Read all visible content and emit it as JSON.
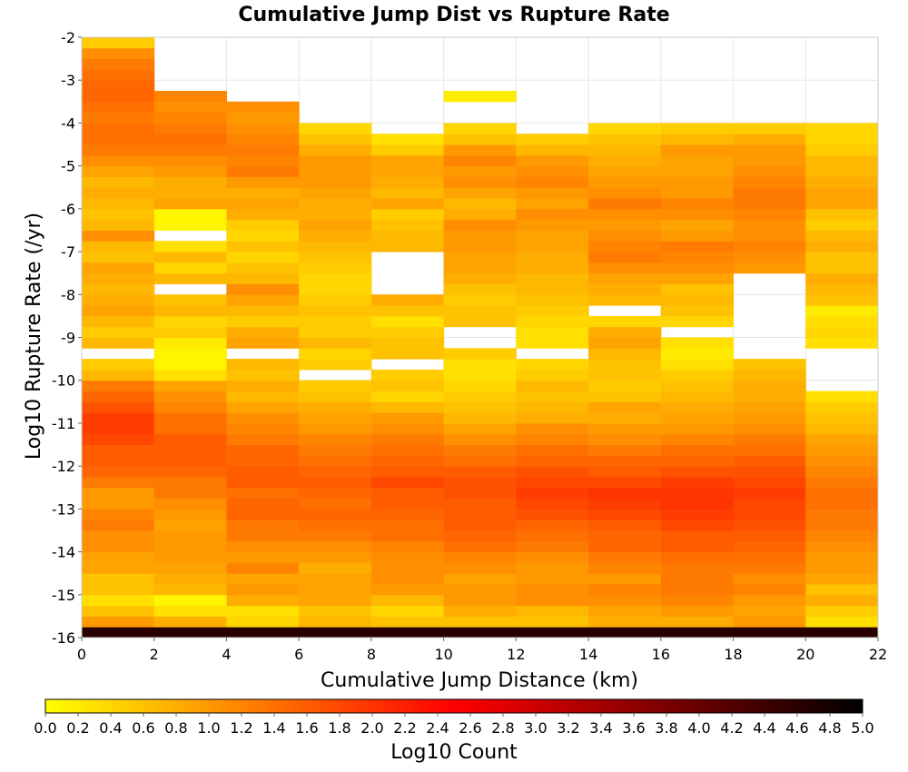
{
  "chart_data": {
    "type": "heatmap",
    "title": "Cumulative Jump Dist vs Rupture Rate",
    "xlabel": "Cumulative Jump Distance (km)",
    "ylabel": "Log10 Rupture Rate (/yr)",
    "colorbar_label": "Log10 Count",
    "xlim": [
      0,
      22
    ],
    "ylim": [
      -16,
      -2
    ],
    "x_ticks": [
      0,
      2,
      4,
      6,
      8,
      10,
      12,
      14,
      16,
      18,
      20,
      22
    ],
    "y_ticks": [
      -2,
      -3,
      -4,
      -5,
      -6,
      -7,
      -8,
      -9,
      -10,
      -11,
      -12,
      -13,
      -14,
      -15,
      -16
    ],
    "color_range": [
      0.0,
      5.0
    ],
    "colorbar_ticks": [
      "0.0",
      "0.2",
      "0.4",
      "0.6",
      "0.8",
      "1.0",
      "1.2",
      "1.4",
      "1.6",
      "1.8",
      "2.0",
      "2.2",
      "2.4",
      "2.6",
      "2.8",
      "3.0",
      "3.2",
      "3.4",
      "3.6",
      "3.8",
      "4.0",
      "4.2",
      "4.4",
      "4.6",
      "4.8",
      "5.0"
    ],
    "colorscale": [
      "#ffff00",
      "#ff0000",
      "#000000"
    ],
    "grid": true,
    "x_bin_edges": [
      0,
      2,
      4,
      6,
      8,
      10,
      12,
      14,
      16,
      18,
      20,
      22
    ],
    "y_bin_size": 0.25,
    "y_bin_start": -16,
    "z_values_by_x_bin": [
      [
        4.6,
        1.0,
        0.6,
        0.3,
        0.6,
        0.6,
        0.9,
        0.9,
        1.1,
        1.1,
        1.3,
        1.2,
        1.0,
        1.0,
        1.3,
        1.5,
        1.6,
        1.6,
        1.8,
        1.9,
        1.9,
        1.7,
        1.5,
        1.3,
        0.7,
        0.5,
        null,
        0.7,
        0.5,
        0.7,
        0.9,
        0.8,
        0.7,
        0.8,
        0.9,
        0.6,
        0.7,
        1.1,
        0.7,
        0.6,
        0.7,
        0.8,
        0.7,
        0.9,
        1.1,
        1.3,
        1.4,
        1.4,
        1.3,
        1.4,
        1.5,
        1.5,
        1.4,
        1.3,
        1.1,
        0.5,
        null,
        null,
        null,
        null,
        null,
        null,
        null,
        null
      ],
      [
        4.6,
        0.8,
        0.3,
        0.1,
        0.7,
        0.8,
        0.9,
        1.0,
        1.0,
        1.0,
        0.9,
        1.0,
        1.1,
        1.3,
        1.3,
        1.5,
        1.6,
        1.6,
        1.6,
        1.4,
        1.4,
        1.2,
        1.1,
        0.9,
        0.3,
        0.1,
        0.1,
        0.2,
        0.5,
        0.4,
        0.7,
        0.6,
        null,
        0.7,
        0.4,
        0.7,
        0.3,
        null,
        0.1,
        0.1,
        0.9,
        0.8,
        0.8,
        1.0,
        1.1,
        1.3,
        1.4,
        1.3,
        1.2,
        1.1,
        1.2,
        null,
        null,
        null,
        null,
        null,
        null,
        null,
        null,
        null,
        null,
        null,
        null,
        null
      ],
      [
        4.6,
        0.4,
        0.3,
        0.8,
        1.0,
        0.9,
        1.2,
        1.0,
        1.1,
        1.3,
        1.3,
        1.5,
        1.5,
        1.4,
        1.6,
        1.6,
        1.5,
        1.5,
        1.3,
        1.2,
        1.1,
        0.9,
        0.7,
        0.8,
        0.6,
        0.7,
        null,
        0.9,
        0.8,
        0.5,
        0.7,
        0.9,
        1.1,
        0.7,
        0.6,
        0.4,
        0.6,
        0.4,
        0.5,
        0.8,
        0.9,
        0.8,
        1.0,
        1.3,
        1.2,
        1.3,
        1.2,
        1.1,
        1.0,
        1.1,
        null,
        null,
        null,
        null,
        null,
        null,
        null,
        null,
        null,
        null,
        null,
        null,
        null,
        null
      ],
      [
        4.6,
        0.7,
        0.6,
        0.9,
        0.9,
        0.9,
        0.8,
        1.0,
        1.1,
        1.3,
        1.4,
        1.5,
        1.4,
        1.5,
        1.6,
        1.5,
        1.4,
        1.3,
        1.2,
        1.0,
        0.9,
        0.8,
        0.6,
        0.5,
        null,
        0.5,
        0.4,
        0.7,
        0.5,
        0.5,
        0.6,
        0.5,
        0.4,
        0.4,
        0.5,
        0.6,
        0.7,
        0.8,
        0.9,
        0.8,
        0.8,
        0.9,
        1.0,
        1.0,
        1.0,
        0.8,
        0.6,
        0.4,
        null,
        null,
        null,
        null,
        null,
        null,
        null,
        null,
        null,
        null,
        null,
        null,
        null,
        null,
        null,
        null
      ],
      [
        4.6,
        0.6,
        0.4,
        0.7,
        1.0,
        1.1,
        1.1,
        1.1,
        1.2,
        1.4,
        1.4,
        1.5,
        1.6,
        1.6,
        1.8,
        1.6,
        1.5,
        1.4,
        1.3,
        1.1,
        1.0,
        0.7,
        0.4,
        0.6,
        0.5,
        null,
        0.6,
        0.6,
        0.5,
        0.3,
        0.6,
        0.8,
        null,
        null,
        null,
        null,
        0.7,
        0.7,
        0.6,
        0.5,
        0.9,
        0.7,
        0.8,
        0.9,
        0.9,
        0.5,
        0.3,
        null,
        null,
        null,
        null,
        null,
        null,
        null,
        null,
        null,
        null,
        null,
        null,
        null,
        null,
        null,
        null,
        null
      ],
      [
        4.6,
        0.6,
        0.8,
        1.0,
        1.0,
        0.9,
        1.1,
        1.2,
        1.4,
        1.5,
        1.6,
        1.6,
        1.6,
        1.7,
        1.7,
        1.6,
        1.4,
        1.3,
        1.1,
        0.9,
        0.7,
        0.6,
        0.5,
        0.4,
        0.3,
        0.3,
        0.5,
        null,
        null,
        0.6,
        0.6,
        0.5,
        0.6,
        0.8,
        0.9,
        0.9,
        1.0,
        1.0,
        1.1,
        0.8,
        0.7,
        0.9,
        1.1,
        1.0,
        1.2,
        1.0,
        0.6,
        0.4,
        null,
        null,
        0.2,
        null,
        null,
        null,
        null,
        null,
        null,
        null,
        null,
        null,
        null,
        null,
        null,
        null
      ],
      [
        4.6,
        0.6,
        0.7,
        1.1,
        1.1,
        1.0,
        1.0,
        1.1,
        1.3,
        1.4,
        1.5,
        1.7,
        1.8,
        1.9,
        1.8,
        1.7,
        1.5,
        1.4,
        1.2,
        1.1,
        0.8,
        0.7,
        0.6,
        0.7,
        0.5,
        0.4,
        null,
        0.3,
        0.3,
        0.4,
        0.5,
        0.6,
        0.7,
        0.7,
        0.8,
        0.8,
        0.9,
        0.9,
        1.0,
        1.1,
        0.9,
        1.0,
        1.2,
        1.1,
        1.0,
        0.7,
        0.5,
        null,
        null,
        null,
        null,
        null,
        null,
        null,
        null,
        null,
        null,
        null,
        null,
        null,
        null,
        null,
        null,
        null
      ],
      [
        4.6,
        0.8,
        0.9,
        1.1,
        1.2,
        1.0,
        1.2,
        1.3,
        1.5,
        1.5,
        1.6,
        1.8,
        1.9,
        2.0,
        1.8,
        1.6,
        1.5,
        1.3,
        1.1,
        1.0,
        0.8,
        0.9,
        0.6,
        0.5,
        0.6,
        0.6,
        0.7,
        0.9,
        0.8,
        0.4,
        null,
        0.7,
        0.8,
        0.9,
        1.1,
        1.3,
        1.2,
        1.1,
        1.0,
        1.1,
        1.3,
        1.1,
        1.0,
        0.9,
        0.8,
        0.7,
        0.6,
        0.4,
        null,
        null,
        null,
        null,
        null,
        null,
        null,
        null,
        null,
        null,
        null,
        null,
        null,
        null,
        null,
        null
      ],
      [
        4.6,
        0.8,
        1.0,
        1.2,
        1.3,
        1.3,
        1.3,
        1.4,
        1.6,
        1.6,
        1.8,
        1.9,
        2.0,
        2.0,
        1.9,
        1.7,
        1.5,
        1.4,
        1.2,
        1.0,
        0.9,
        0.8,
        0.7,
        0.6,
        0.5,
        0.3,
        0.2,
        0.3,
        null,
        0.4,
        0.6,
        0.7,
        0.6,
        0.9,
        1.1,
        1.2,
        1.3,
        1.0,
        0.9,
        1.1,
        1.2,
        1.0,
        1.0,
        0.9,
        0.9,
        1.0,
        0.7,
        0.5,
        null,
        null,
        null,
        null,
        null,
        null,
        null,
        null,
        null,
        null,
        null,
        null,
        null,
        null,
        null,
        null
      ],
      [
        4.6,
        1.0,
        0.9,
        1.0,
        1.2,
        1.1,
        1.3,
        1.4,
        1.5,
        1.6,
        1.7,
        1.8,
        1.8,
        1.9,
        1.8,
        1.7,
        1.6,
        1.4,
        1.3,
        1.1,
        1.0,
        0.9,
        0.8,
        0.8,
        0.7,
        0.6,
        null,
        null,
        null,
        null,
        null,
        null,
        null,
        null,
        1.0,
        1.1,
        1.2,
        1.1,
        1.1,
        1.2,
        1.3,
        1.3,
        1.2,
        1.1,
        1.0,
        1.0,
        0.8,
        0.5,
        null,
        null,
        null,
        null,
        null,
        null,
        null,
        null,
        null,
        null,
        null,
        null,
        null,
        null,
        null,
        null
      ],
      [
        4.6,
        0.3,
        0.5,
        0.8,
        0.6,
        0.9,
        1.0,
        1.0,
        1.1,
        1.2,
        1.3,
        1.3,
        1.4,
        1.4,
        1.3,
        1.2,
        1.1,
        1.0,
        0.9,
        0.7,
        0.6,
        0.5,
        0.3,
        null,
        null,
        null,
        null,
        0.3,
        0.4,
        0.3,
        0.2,
        0.6,
        0.7,
        0.8,
        0.6,
        0.6,
        0.8,
        0.7,
        0.5,
        0.6,
        0.9,
        0.9,
        0.8,
        0.7,
        0.7,
        0.5,
        0.4,
        0.4,
        null,
        null,
        null,
        null,
        null,
        null,
        null,
        null,
        null,
        null,
        null,
        null,
        null,
        null,
        null,
        null
      ]
    ]
  }
}
